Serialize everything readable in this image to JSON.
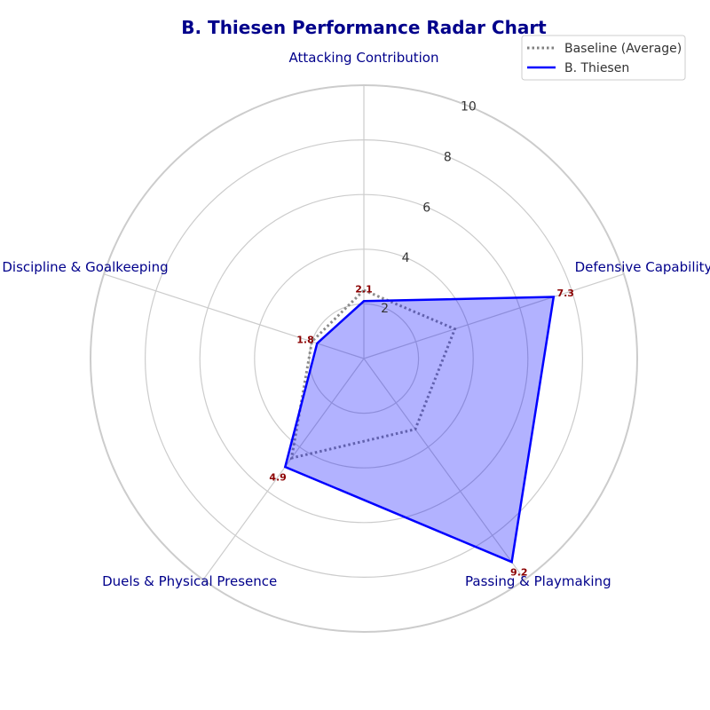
{
  "chart_data": {
    "type": "radar",
    "title": "B. Thiesen Performance Radar Chart",
    "categories": [
      "Attacking Contribution",
      "Defensive Capability",
      "Passing & Playmaking",
      "Duels & Physical Presence",
      "Discipline & Goalkeeping"
    ],
    "rlim": [
      0,
      10
    ],
    "rticks": [
      2,
      4,
      6,
      8,
      10
    ],
    "series": [
      {
        "name": "Baseline (Average)",
        "values": [
          2.5,
          3.5,
          3.2,
          4.5,
          2.0
        ],
        "color": "#808080",
        "style": "dotted",
        "fill": false
      },
      {
        "name": "B. Thiesen",
        "values": [
          2.1,
          7.3,
          9.2,
          4.9,
          1.8
        ],
        "value_labels": [
          "2.1",
          "7.3",
          "9.2",
          "4.9",
          "1.8"
        ],
        "color": "#0000ff",
        "style": "solid",
        "fill": true,
        "fill_color": "#0000ff"
      }
    ],
    "grid": true,
    "legend_position": "top-right"
  }
}
